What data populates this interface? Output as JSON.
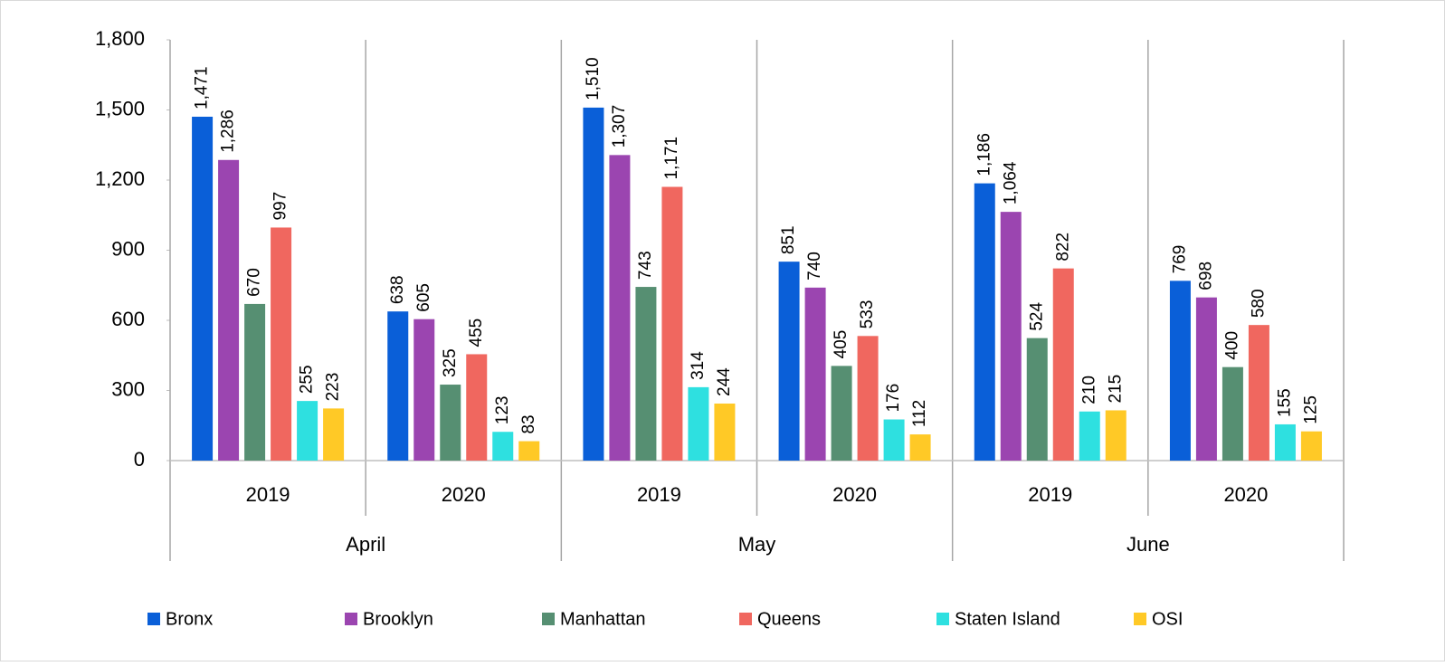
{
  "chart_data": {
    "type": "bar",
    "categories": [
      "2019",
      "2020",
      "2019",
      "2020",
      "2019",
      "2020"
    ],
    "category_groups": [
      "April",
      "May",
      "June"
    ],
    "ylim": [
      0,
      1800
    ],
    "yticks": [
      0,
      300,
      600,
      900,
      {
        "value": 1200,
        "label": "1,200"
      },
      {
        "value": 1500,
        "label": "1,500"
      },
      {
        "value": 1800,
        "label": "1,800"
      }
    ],
    "grid": false,
    "legend": "bottom",
    "series": [
      {
        "name": "Bronx",
        "color": "#0a5fd8",
        "values": [
          1471,
          638,
          1510,
          851,
          1186,
          769
        ],
        "value_labels": [
          "1,471",
          "638",
          "1,510",
          "851",
          "1,186",
          "769"
        ]
      },
      {
        "name": "Brooklyn",
        "color": "#9b45b0",
        "values": [
          1286,
          605,
          1307,
          740,
          1064,
          698
        ],
        "value_labels": [
          "1,286",
          "605",
          "1,307",
          "740",
          "1,064",
          "698"
        ]
      },
      {
        "name": "Manhattan",
        "color": "#568f72",
        "values": [
          670,
          325,
          743,
          405,
          524,
          400
        ],
        "value_labels": [
          "670",
          "325",
          "743",
          "405",
          "524",
          "400"
        ]
      },
      {
        "name": "Queens",
        "color": "#f0675f",
        "values": [
          997,
          455,
          1171,
          533,
          822,
          580
        ],
        "value_labels": [
          "997",
          "455",
          "1,171",
          "533",
          "822",
          "580"
        ]
      },
      {
        "name": "Staten Island",
        "color": "#2ee0e0",
        "values": [
          255,
          123,
          314,
          176,
          210,
          155
        ],
        "value_labels": [
          "255",
          "123",
          "314",
          "176",
          "210",
          "155"
        ]
      },
      {
        "name": "OSI",
        "color": "#ffc926",
        "values": [
          223,
          83,
          244,
          112,
          215,
          125
        ],
        "value_labels": [
          "223",
          "83",
          "244",
          "112",
          "215",
          "125"
        ]
      }
    ]
  }
}
